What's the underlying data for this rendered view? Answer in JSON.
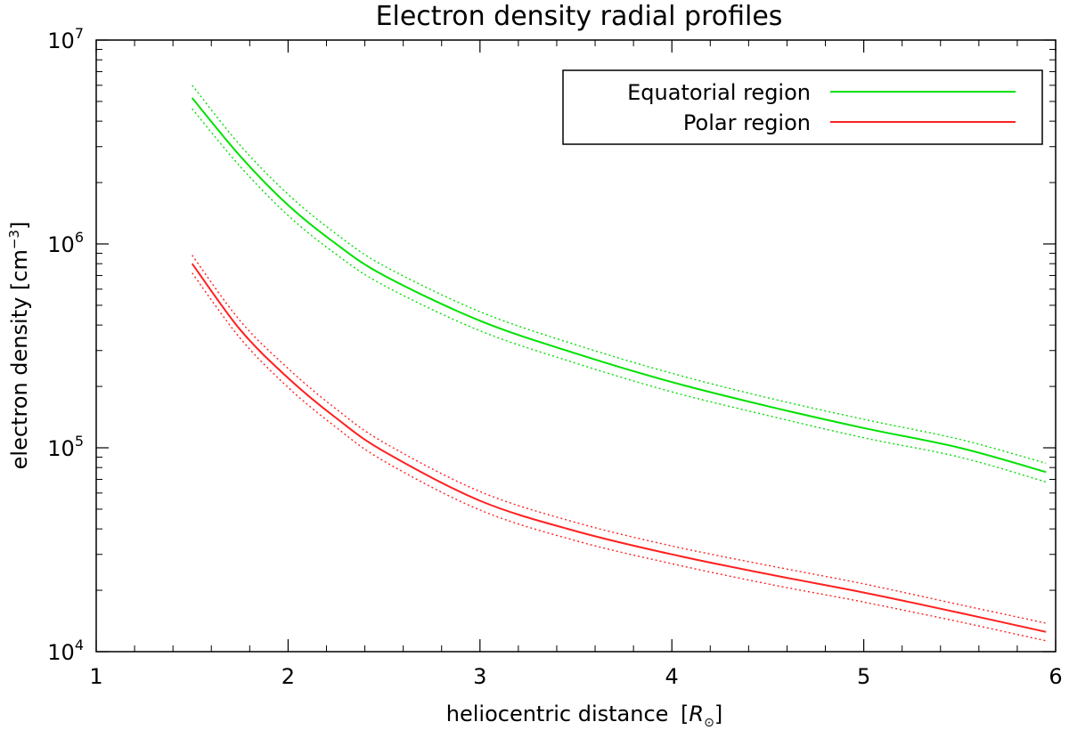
{
  "chart_data": {
    "type": "line",
    "title": "Electron density radial profiles",
    "xlabel": "heliocentric distance",
    "xlabel_unit": "R",
    "xlabel_unit_sub": "⊙",
    "ylabel": "electron density [cm",
    "ylabel_sup": "−3",
    "ylabel_close": "]",
    "xlim": [
      1,
      6
    ],
    "ylim": [
      10000,
      10000000
    ],
    "yscale": "log",
    "x_ticks": [
      {
        "value": 1,
        "label": "1"
      },
      {
        "value": 2,
        "label": "2"
      },
      {
        "value": 3,
        "label": "3"
      },
      {
        "value": 4,
        "label": "4"
      },
      {
        "value": 5,
        "label": "5"
      },
      {
        "value": 6,
        "label": "6"
      }
    ],
    "y_ticks": [
      {
        "value": 10000,
        "base": "10",
        "exp": "4"
      },
      {
        "value": 100000,
        "base": "10",
        "exp": "5"
      },
      {
        "value": 1000000,
        "base": "10",
        "exp": "6"
      },
      {
        "value": 10000000,
        "base": "10",
        "exp": "7"
      }
    ],
    "legend_position": "top-right",
    "series": [
      {
        "name": "Equatorial region",
        "color": "#00e000",
        "x": [
          1.5,
          1.75,
          2.0,
          2.25,
          2.5,
          3.0,
          3.5,
          4.0,
          4.5,
          5.0,
          5.5,
          5.95
        ],
        "values": [
          5200000,
          2700000,
          1550000,
          1000000,
          700000,
          420000,
          290000,
          210000,
          160000,
          125000,
          100000,
          76000
        ],
        "upper": [
          6000000,
          3050000,
          1750000,
          1120000,
          780000,
          465000,
          320000,
          232000,
          176000,
          138000,
          110000,
          84000
        ],
        "lower": [
          4600000,
          2400000,
          1380000,
          890000,
          625000,
          375000,
          260000,
          188000,
          144000,
          112000,
          90000,
          68000
        ]
      },
      {
        "name": "Polar region",
        "color": "#ff2020",
        "x": [
          1.5,
          1.75,
          2.0,
          2.25,
          2.5,
          3.0,
          3.5,
          4.0,
          4.5,
          5.0,
          5.5,
          5.95
        ],
        "values": [
          800000,
          380000,
          220000,
          140000,
          96000,
          55000,
          39000,
          30000,
          24000,
          19500,
          15500,
          12500
        ],
        "upper": [
          880000,
          420000,
          245000,
          155000,
          106000,
          61000,
          43000,
          33000,
          26500,
          21500,
          17000,
          13800
        ],
        "lower": [
          720000,
          345000,
          198000,
          126000,
          86000,
          49500,
          35000,
          27000,
          21500,
          17500,
          14000,
          11300
        ]
      }
    ]
  }
}
